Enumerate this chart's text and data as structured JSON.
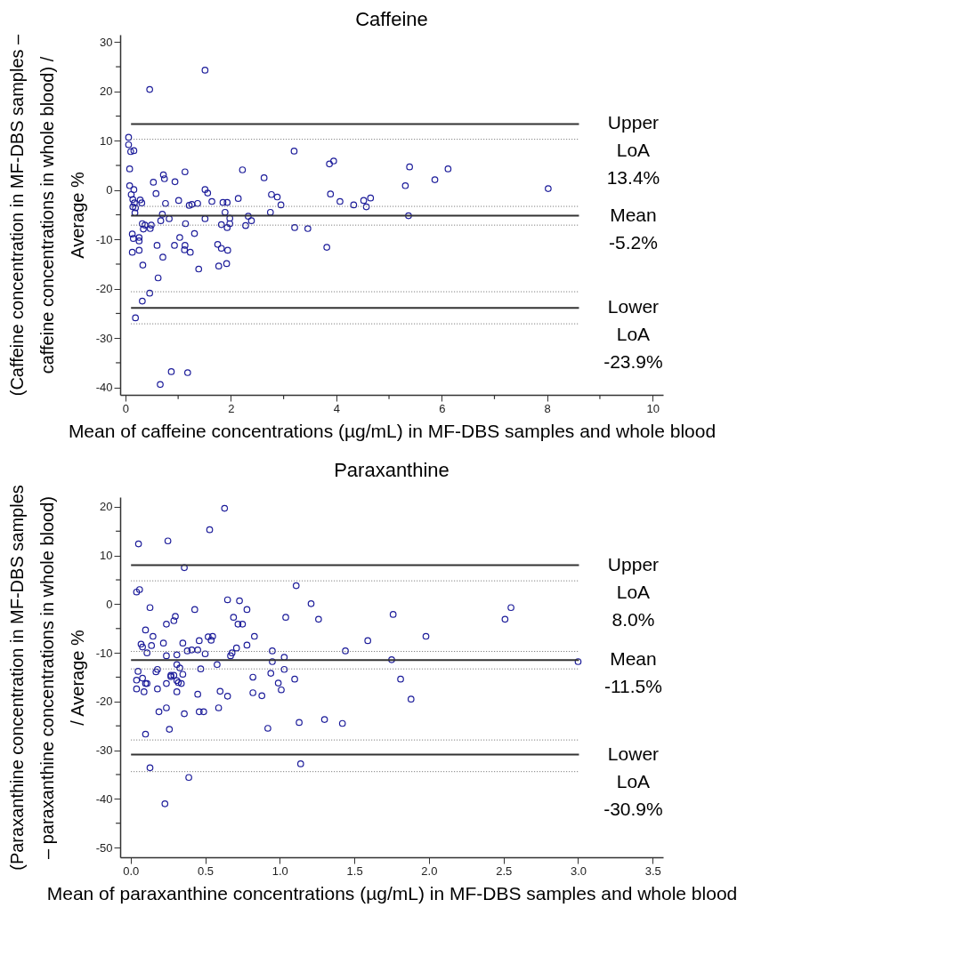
{
  "chart_data": [
    {
      "type": "scatter",
      "title": "Caffeine",
      "xlabel": "Mean of caffeine concentrations (µg/mL) in MF-DBS samples and whole blood",
      "ylabel": "(Caffeine concentration in MF-DBS samples – caffeine concentrations in whole blood) / Average %",
      "xlim": [
        -0.1,
        10.2
      ],
      "ylim": [
        -41.5,
        31.5
      ],
      "xticks": [
        0,
        {
          "value": 1,
          "label": null
        },
        2,
        {
          "value": 3,
          "label": null
        },
        4,
        {
          "value": 5,
          "label": null
        },
        6,
        {
          "value": 7,
          "label": null
        },
        8,
        {
          "value": 9,
          "label": null
        },
        10
      ],
      "yticks": [
        -40,
        {
          "value": -35,
          "label": null
        },
        -30,
        {
          "value": -25,
          "label": null
        },
        -20,
        {
          "value": -15,
          "label": null
        },
        -10,
        {
          "value": -5,
          "label": null
        },
        0,
        {
          "value": 5,
          "label": null
        },
        10,
        {
          "value": 15,
          "label": null
        },
        20,
        {
          "value": 25,
          "label": null
        },
        30
      ],
      "grid": false,
      "marker": "circle",
      "series": [
        {
          "color": "#1c1c9a",
          "x": [
            0.46,
            1.51,
            0.06,
            0.06,
            0.1,
            0.16,
            0.08,
            0.08,
            0.11,
            0.16,
            0.14,
            0.17,
            0.14,
            0.19,
            0.18,
            0.28,
            0.31,
            0.13,
            0.15,
            0.13,
            0.26,
            0.26,
            0.26,
            0.32,
            0.34,
            0.37,
            0.47,
            0.49,
            0.33,
            0.46,
            0.32,
            0.19,
            0.66,
            0.87,
            1.18,
            0.53,
            0.58,
            0.72,
            0.74,
            0.76,
            0.7,
            0.67,
            0.83,
            0.6,
            0.71,
            0.62,
            0.94,
            1.01,
            1.13,
            1.03,
            0.93,
            1.13,
            1.12,
            1.23,
            1.14,
            1.31,
            1.21,
            1.26,
            1.37,
            1.51,
            1.56,
            1.64,
            1.51,
            1.39,
            1.75,
            1.82,
            1.94,
            1.77,
            1.92,
            1.85,
            1.93,
            1.89,
            1.98,
            1.82,
            1.93,
            1.98,
            2.14,
            2.22,
            2.33,
            2.28,
            2.39,
            2.63,
            2.77,
            2.75,
            2.88,
            2.95,
            3.2,
            3.21,
            3.46,
            3.87,
            3.95,
            3.82,
            3.89,
            4.07,
            4.33,
            4.52,
            4.57,
            4.65,
            5.31,
            5.39,
            5.37,
            5.87,
            6.12,
            8.02
          ],
          "values": [
            20.4,
            24.3,
            10.7,
            9.2,
            7.8,
            8.0,
            4.3,
            0.9,
            -0.9,
            0.1,
            -1.9,
            -2.6,
            -3.4,
            -3.6,
            -4.6,
            -2.0,
            -2.6,
            -8.9,
            -9.8,
            -12.6,
            -9.6,
            -10.3,
            -12.2,
            -6.8,
            -7.9,
            -7.1,
            -7.8,
            -7.1,
            -15.2,
            -20.9,
            -22.5,
            -25.9,
            -39.4,
            -36.8,
            -37.0,
            1.6,
            -0.7,
            3.1,
            2.3,
            -2.7,
            -4.9,
            -6.2,
            -5.8,
            -11.2,
            -13.6,
            -17.8,
            1.7,
            -2.1,
            3.7,
            -9.6,
            -11.2,
            -11.2,
            -12.1,
            -12.6,
            -6.8,
            -8.8,
            -3.1,
            -2.9,
            -2.7,
            0.1,
            -0.6,
            -2.3,
            -5.8,
            -16.0,
            -11.0,
            -11.8,
            -12.2,
            -15.4,
            -14.9,
            -2.5,
            -2.5,
            -4.5,
            -5.7,
            -7.0,
            -7.6,
            -6.8,
            -1.7,
            4.1,
            -5.3,
            -7.2,
            -6.2,
            2.5,
            -0.9,
            -4.5,
            -1.4,
            -3.0,
            7.9,
            -7.6,
            -7.8,
            5.3,
            5.9,
            -11.6,
            -0.8,
            -2.3,
            -3.0,
            -2.1,
            -3.4,
            -1.6,
            0.9,
            4.7,
            -5.2,
            2.1,
            4.3,
            0.3
          ]
        }
      ],
      "ref_lines": [
        {
          "axis": "y",
          "value": 13.4,
          "label": "Upper LoA 13.4%",
          "color": "#333333",
          "line_style": "solid"
        },
        {
          "axis": "y",
          "value": 10.3,
          "color": "#666666",
          "line_style": "dotted"
        },
        {
          "axis": "y",
          "value": -3.3,
          "color": "#666666",
          "line_style": "dotted"
        },
        {
          "axis": "y",
          "value": -5.2,
          "label": "Mean -5.2%",
          "color": "#333333",
          "line_style": "solid"
        },
        {
          "axis": "y",
          "value": -7.1,
          "color": "#666666",
          "line_style": "dotted"
        },
        {
          "axis": "y",
          "value": -20.6,
          "color": "#666666",
          "line_style": "dotted"
        },
        {
          "axis": "y",
          "value": -23.9,
          "label": "Lower LoA -23.9%",
          "color": "#333333",
          "line_style": "solid"
        },
        {
          "axis": "y",
          "value": -27.1,
          "color": "#666666",
          "line_style": "dotted"
        }
      ]
    },
    {
      "type": "scatter",
      "title": "Paraxanthine",
      "xlabel": "Mean of paraxanthine concentrations (µg/mL) in MF-DBS samples and whole blood",
      "ylabel": "(Paraxanthine concentration in MF-DBS samples – paraxanthine concentrations in whole blood) / Average %",
      "xlim": [
        -0.07,
        3.57
      ],
      "ylim": [
        -52,
        22
      ],
      "xticks": [
        {
          "value": 0,
          "label": "0.0"
        },
        {
          "value": 0.5,
          "label": "0.5"
        },
        {
          "value": 1,
          "label": "1.0"
        },
        {
          "value": 1.5,
          "label": "1.5"
        },
        {
          "value": 2,
          "label": "2.0"
        },
        {
          "value": 2.5,
          "label": "2.5"
        },
        {
          "value": 3,
          "label": "3.0"
        },
        {
          "value": 3.5,
          "label": "3.5"
        }
      ],
      "yticks": [
        -50,
        {
          "value": -45,
          "label": null
        },
        -40,
        {
          "value": -35,
          "label": null
        },
        -30,
        {
          "value": -25,
          "label": null
        },
        -20,
        {
          "value": -15,
          "label": null
        },
        -10,
        {
          "value": -5,
          "label": null
        },
        0,
        {
          "value": 5,
          "label": null
        },
        10,
        {
          "value": 15,
          "label": null
        },
        20
      ],
      "grid": false,
      "marker": "circle",
      "series": [
        {
          "color": "#1c1c9a",
          "x": [
            0.053,
            0.25,
            0.53,
            0.63,
            0.36,
            0.04,
            0.06,
            0.13,
            0.43,
            0.65,
            0.73,
            0.78,
            0.3,
            0.29,
            0.69,
            0.72,
            0.75,
            0.24,
            0.1,
            0.15,
            0.07,
            0.08,
            0.11,
            0.14,
            0.22,
            0.35,
            0.31,
            0.24,
            0.38,
            0.41,
            0.45,
            0.46,
            0.5,
            0.52,
            0.55,
            0.54,
            0.58,
            0.67,
            0.68,
            0.71,
            0.78,
            0.83,
            0.95,
            0.95,
            1.03,
            0.05,
            0.04,
            0.08,
            0.04,
            0.09,
            0.1,
            0.11,
            0.17,
            0.18,
            0.18,
            0.24,
            0.27,
            0.27,
            0.29,
            0.31,
            0.33,
            0.35,
            0.31,
            0.32,
            0.34,
            0.31,
            0.47,
            0.45,
            0.19,
            0.24,
            0.36,
            0.46,
            0.49,
            0.26,
            0.1,
            0.13,
            0.39,
            0.23,
            0.6,
            0.65,
            0.59,
            0.82,
            0.82,
            0.88,
            0.94,
            0.99,
            1.01,
            1.03,
            0.92,
            1.11,
            1.21,
            1.04,
            1.26,
            1.1,
            1.13,
            1.14,
            1.3,
            1.42,
            1.44,
            1.59,
            1.76,
            1.75,
            1.81,
            1.88,
            1.98,
            2.51,
            2.55,
            3.0
          ],
          "values": [
            12.4,
            13.0,
            15.3,
            19.7,
            7.5,
            2.5,
            3.0,
            -0.7,
            -1.1,
            0.9,
            0.7,
            -1.1,
            -2.5,
            -3.4,
            -2.7,
            -4.1,
            -4.1,
            -4.1,
            -5.3,
            -6.6,
            -8.2,
            -8.8,
            -10.0,
            -8.5,
            -8.0,
            -8.0,
            -10.4,
            -10.6,
            -9.6,
            -9.4,
            -9.4,
            -7.5,
            -10.2,
            -6.7,
            -6.6,
            -7.4,
            -12.4,
            -10.6,
            -10.0,
            -9.0,
            -8.4,
            -6.6,
            -9.6,
            -11.8,
            -10.9,
            -13.8,
            -15.6,
            -15.2,
            -17.4,
            -18.0,
            -16.3,
            -16.3,
            -13.9,
            -13.4,
            -17.4,
            -16.3,
            -14.6,
            -14.9,
            -14.6,
            -12.4,
            -13.1,
            -14.4,
            -15.7,
            -16.1,
            -16.3,
            -18.0,
            -13.3,
            -18.5,
            -22.1,
            -21.3,
            -22.5,
            -22.1,
            -22.1,
            -25.7,
            -26.7,
            -33.6,
            -35.6,
            -41.0,
            -17.9,
            -18.9,
            -21.3,
            -15.0,
            -18.2,
            -18.8,
            -14.2,
            -16.2,
            -17.6,
            -13.4,
            -25.5,
            3.8,
            0.1,
            -2.7,
            -3.1,
            -15.4,
            -24.3,
            -32.8,
            -23.7,
            -24.5,
            -9.6,
            -7.5,
            -2.1,
            -11.4,
            -15.4,
            -19.5,
            -6.6,
            -3.1,
            -0.7,
            -11.8
          ]
        }
      ],
      "ref_lines": [
        {
          "axis": "y",
          "value": 8.0,
          "label": "Upper LoA 8.0%",
          "color": "#333333",
          "line_style": "solid"
        },
        {
          "axis": "y",
          "value": 4.8,
          "color": "#666666",
          "line_style": "dotted"
        },
        {
          "axis": "y",
          "value": -9.7,
          "color": "#666666",
          "line_style": "dotted"
        },
        {
          "axis": "y",
          "value": -11.5,
          "label": "Mean -11.5%",
          "color": "#333333",
          "line_style": "solid"
        },
        {
          "axis": "y",
          "value": -13.3,
          "color": "#666666",
          "line_style": "dotted"
        },
        {
          "axis": "y",
          "value": -27.9,
          "color": "#666666",
          "line_style": "dotted"
        },
        {
          "axis": "y",
          "value": -30.9,
          "label": "Lower LoA -30.9%",
          "color": "#333333",
          "line_style": "solid"
        },
        {
          "axis": "y",
          "value": -34.4,
          "color": "#666666",
          "line_style": "dotted"
        }
      ]
    }
  ]
}
